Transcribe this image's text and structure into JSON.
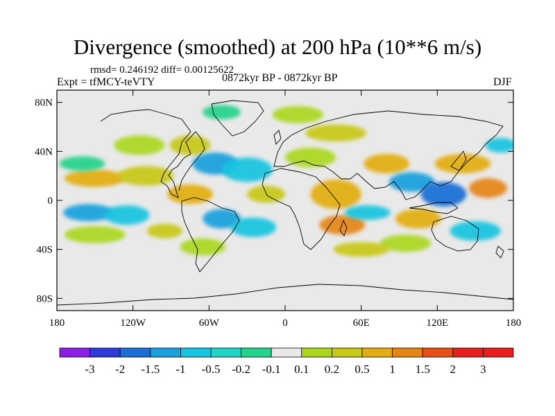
{
  "title": "Divergence (smoothed) at 200 hPa (10**6 m/s)",
  "stats": "rmsd= 0.246192 diff= 0.00125622",
  "experiment": "Expt = tfMCY-teVTY",
  "period": "0872kyr BP - 0872kyr BP",
  "season": "DJF",
  "map": {
    "lat_labels": [
      "80N",
      "40N",
      "0",
      "40S",
      "80S"
    ],
    "lat_values": [
      80,
      40,
      0,
      -40,
      -80
    ],
    "lon_labels": [
      "180",
      "120W",
      "60W",
      "0",
      "60E",
      "120E",
      "180"
    ],
    "lon_values": [
      -180,
      -120,
      -60,
      0,
      60,
      120,
      180
    ],
    "land_color": "#e9e9e9"
  },
  "colorbar": {
    "labels": [
      "-3",
      "-2",
      "-1.5",
      "-1",
      "-0.5",
      "-0.2",
      "-0.1",
      "0.1",
      "0.2",
      "0.5",
      "1",
      "1.5",
      "2",
      "3"
    ],
    "colors": [
      "#8a1ee6",
      "#2e3bd6",
      "#1a6ed6",
      "#1aa0dc",
      "#17c3e0",
      "#1fd4c4",
      "#22d38a",
      "#e9e9e9",
      "#a9d81e",
      "#c8c816",
      "#e3ad12",
      "#e58417",
      "#e84f17",
      "#e81e1e"
    ]
  },
  "blobs": [
    {
      "lon": -150,
      "lat": 18,
      "rx": 24,
      "ry": 7,
      "color": "#e3ad12"
    },
    {
      "lon": -110,
      "lat": 20,
      "rx": 22,
      "ry": 8,
      "color": "#c8c816"
    },
    {
      "lon": -155,
      "lat": -10,
      "rx": 20,
      "ry": 7,
      "color": "#1aa0dc"
    },
    {
      "lon": -125,
      "lat": -12,
      "rx": 18,
      "ry": 8,
      "color": "#17c3e0"
    },
    {
      "lon": -160,
      "lat": 30,
      "rx": 18,
      "ry": 6,
      "color": "#22d38a"
    },
    {
      "lon": -150,
      "lat": -28,
      "rx": 24,
      "ry": 7,
      "color": "#a9d81e"
    },
    {
      "lon": -95,
      "lat": -25,
      "rx": 14,
      "ry": 6,
      "color": "#c8c816"
    },
    {
      "lon": -115,
      "lat": 45,
      "rx": 20,
      "ry": 8,
      "color": "#a9d81e"
    },
    {
      "lon": -75,
      "lat": 45,
      "rx": 16,
      "ry": 8,
      "color": "#c8c816"
    },
    {
      "lon": -55,
      "lat": 30,
      "rx": 18,
      "ry": 9,
      "color": "#1aa0dc"
    },
    {
      "lon": -30,
      "lat": 25,
      "rx": 20,
      "ry": 10,
      "color": "#17c3e0"
    },
    {
      "lon": -75,
      "lat": 5,
      "rx": 18,
      "ry": 8,
      "color": "#e3ad12"
    },
    {
      "lon": -50,
      "lat": -15,
      "rx": 15,
      "ry": 8,
      "color": "#1aa0dc"
    },
    {
      "lon": -25,
      "lat": -22,
      "rx": 18,
      "ry": 8,
      "color": "#17c3e0"
    },
    {
      "lon": -65,
      "lat": -38,
      "rx": 18,
      "ry": 7,
      "color": "#a9d81e"
    },
    {
      "lon": -15,
      "lat": 5,
      "rx": 15,
      "ry": 7,
      "color": "#c8c816"
    },
    {
      "lon": 10,
      "lat": 70,
      "rx": 20,
      "ry": 7,
      "color": "#a9d81e"
    },
    {
      "lon": -50,
      "lat": 72,
      "rx": 15,
      "ry": 6,
      "color": "#22d38a"
    },
    {
      "lon": 40,
      "lat": 55,
      "rx": 24,
      "ry": 7,
      "color": "#c8c816"
    },
    {
      "lon": 20,
      "lat": 35,
      "rx": 20,
      "ry": 8,
      "color": "#a9d81e"
    },
    {
      "lon": 40,
      "lat": 5,
      "rx": 20,
      "ry": 12,
      "color": "#e3ad12"
    },
    {
      "lon": 45,
      "lat": -20,
      "rx": 18,
      "ry": 8,
      "color": "#e58417"
    },
    {
      "lon": 65,
      "lat": -10,
      "rx": 18,
      "ry": 6,
      "color": "#17c3e0"
    },
    {
      "lon": 80,
      "lat": 30,
      "rx": 18,
      "ry": 8,
      "color": "#e3ad12"
    },
    {
      "lon": 100,
      "lat": 15,
      "rx": 18,
      "ry": 8,
      "color": "#1aa0dc"
    },
    {
      "lon": 125,
      "lat": 5,
      "rx": 18,
      "ry": 10,
      "color": "#1a6ed6"
    },
    {
      "lon": 140,
      "lat": 30,
      "rx": 22,
      "ry": 8,
      "color": "#e3ad12"
    },
    {
      "lon": 105,
      "lat": -15,
      "rx": 18,
      "ry": 8,
      "color": "#e3ad12"
    },
    {
      "lon": 150,
      "lat": -25,
      "rx": 20,
      "ry": 8,
      "color": "#17c3e0"
    },
    {
      "lon": 95,
      "lat": -35,
      "rx": 20,
      "ry": 7,
      "color": "#a9d81e"
    },
    {
      "lon": 160,
      "lat": 10,
      "rx": 15,
      "ry": 8,
      "color": "#e58417"
    },
    {
      "lon": 170,
      "lat": 45,
      "rx": 12,
      "ry": 6,
      "color": "#17c3e0"
    },
    {
      "lon": 60,
      "lat": -40,
      "rx": 22,
      "ry": 6,
      "color": "#c8c816"
    }
  ]
}
